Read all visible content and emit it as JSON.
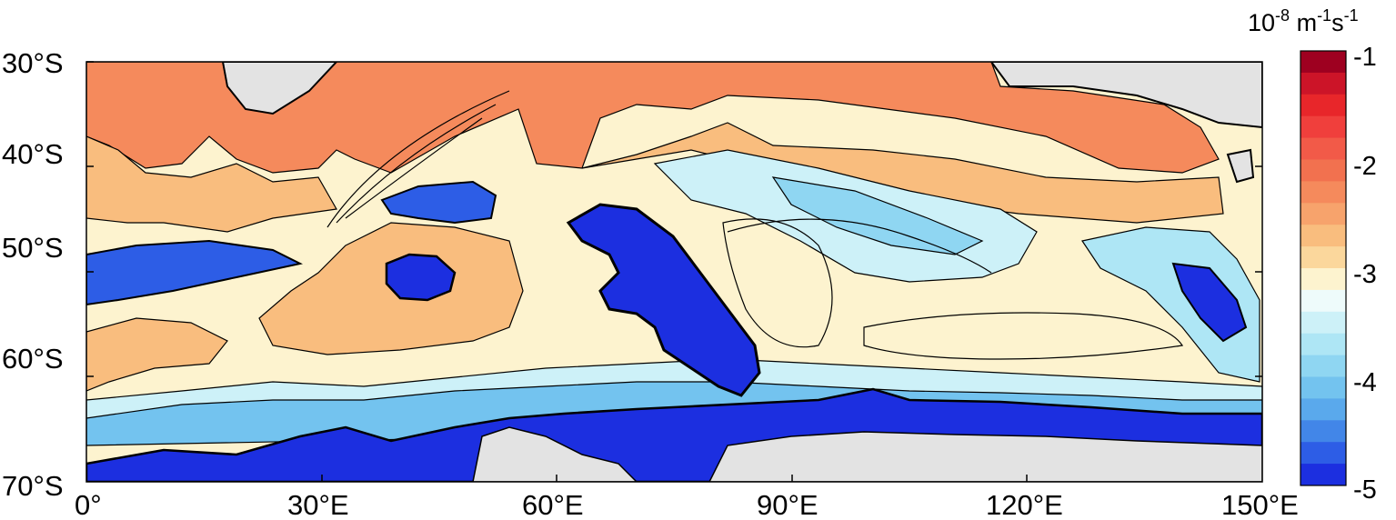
{
  "map": {
    "lat_range": [
      "70°S",
      "30°S"
    ],
    "lon_range": [
      "0°",
      "150°E"
    ],
    "y_ticks": [
      "30°S",
      "40°S",
      "50°S",
      "60°S",
      "70°S"
    ],
    "x_ticks": [
      "0°",
      "30°E",
      "60°E",
      "90°E",
      "120°E",
      "150°E"
    ],
    "land_color": "#e3e3e3",
    "contour_color": "#000000"
  },
  "colorbar": {
    "unit_base": "10",
    "unit_exp": "-8",
    "unit_m": " m",
    "unit_m_exp": "-1",
    "unit_s": "s",
    "unit_s_exp": "-1",
    "tick_labels": [
      "-1",
      "-2",
      "-3",
      "-4",
      "-5"
    ],
    "levels": [
      -1.0,
      -1.2,
      -1.4,
      -1.6,
      -1.8,
      -2.0,
      -2.2,
      -2.4,
      -2.6,
      -2.8,
      -3.0,
      -3.2,
      -3.4,
      -3.6,
      -3.8,
      -4.0,
      -4.2,
      -4.4,
      -4.6,
      -4.8,
      -5.0
    ],
    "colors": [
      "#9e0020",
      "#cc1428",
      "#e8262a",
      "#f03f3c",
      "#f25a48",
      "#f2714f",
      "#f58a5c",
      "#f7a36c",
      "#f9bd7e",
      "#fbd79c",
      "#fdf3cf",
      "#eefbfb",
      "#cdf1f8",
      "#aee6f5",
      "#8fd6f2",
      "#73c3ef",
      "#5aa9ec",
      "#4286e8",
      "#2d5de6",
      "#1c2fe0"
    ]
  }
}
